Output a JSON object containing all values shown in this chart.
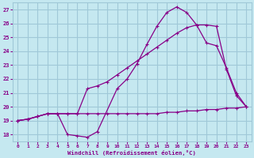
{
  "xlabel": "Windchill (Refroidissement éolien,°C)",
  "bg_color": "#c5e8f0",
  "grid_color": "#a0c8d8",
  "line_color": "#880088",
  "xlim": [
    -0.5,
    23.5
  ],
  "ylim": [
    17.5,
    27.5
  ],
  "xticks": [
    0,
    1,
    2,
    3,
    4,
    5,
    6,
    7,
    8,
    9,
    10,
    11,
    12,
    13,
    14,
    15,
    16,
    17,
    18,
    19,
    20,
    21,
    22,
    23
  ],
  "yticks": [
    18,
    19,
    20,
    21,
    22,
    23,
    24,
    25,
    26,
    27
  ],
  "series1_x": [
    0,
    1,
    2,
    3,
    4,
    5,
    6,
    7,
    8,
    10,
    11,
    12,
    13,
    14,
    15,
    16,
    17,
    18,
    19,
    20,
    21,
    22,
    23
  ],
  "series1_y": [
    19,
    19.1,
    19.3,
    19.5,
    19.5,
    18.0,
    17.9,
    17.8,
    18.2,
    21.3,
    22.0,
    23.1,
    24.5,
    25.8,
    26.8,
    27.2,
    26.8,
    25.9,
    25.9,
    25.8,
    22.7,
    20.8,
    20.0
  ],
  "series2_x": [
    0,
    1,
    2,
    3,
    4,
    5,
    6,
    7,
    8,
    9,
    10,
    11,
    12,
    13,
    14,
    15,
    16,
    17,
    18,
    19,
    20,
    21,
    22,
    23
  ],
  "series2_y": [
    19,
    19.1,
    19.3,
    19.5,
    19.5,
    19.5,
    19.5,
    21.3,
    21.5,
    21.8,
    22.3,
    22.8,
    23.3,
    23.8,
    24.3,
    24.8,
    25.3,
    25.7,
    25.9,
    24.6,
    24.4,
    22.8,
    21.0,
    20.0
  ],
  "series3_x": [
    0,
    1,
    2,
    3,
    4,
    5,
    6,
    7,
    8,
    9,
    10,
    11,
    12,
    13,
    14,
    15,
    16,
    17,
    18,
    19,
    20,
    21,
    22,
    23
  ],
  "series3_y": [
    19,
    19.1,
    19.3,
    19.5,
    19.5,
    19.5,
    19.5,
    19.5,
    19.5,
    19.5,
    19.5,
    19.5,
    19.5,
    19.5,
    19.5,
    19.6,
    19.6,
    19.7,
    19.7,
    19.8,
    19.8,
    19.9,
    19.9,
    20.0
  ]
}
